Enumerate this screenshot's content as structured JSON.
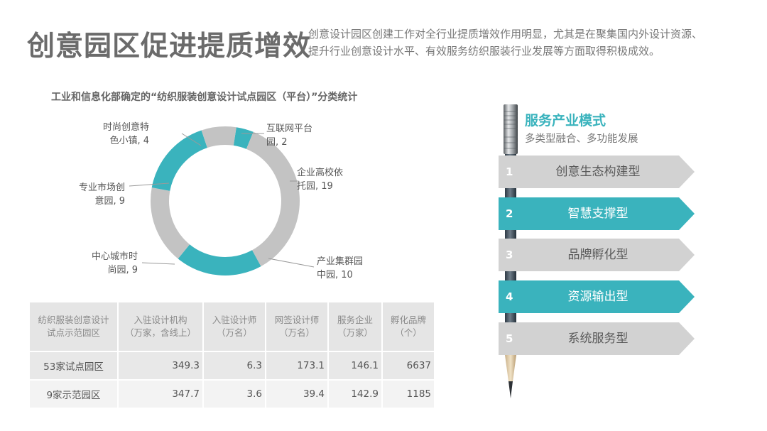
{
  "header": {
    "title": "创意园区促进提质增效",
    "intro_line1": "创意设计园区创建工作对全行业提质增效作用明显，尤其是在聚集国内外设计资源、",
    "intro_line2": "提升行业创意设计水平、有效服务纺织服装行业发展等方面取得积极成效。"
  },
  "chart_data": {
    "type": "pie",
    "title": "工业和信息化部确定的“纺织服装创意设计试点园区（平台）”分类统计",
    "donut": true,
    "slices": [
      {
        "name": "互联网平台园",
        "value": 2,
        "label_lines": [
          "互联网平台",
          "园, 2"
        ],
        "color": "#3ab3bd"
      },
      {
        "name": "企业高校依托园",
        "value": 19,
        "label_lines": [
          "企业高校依",
          "托园, 19"
        ],
        "color": "#c3c3c3"
      },
      {
        "name": "产业集群园中园",
        "value": 10,
        "label_lines": [
          "产业集群园",
          "中园, 10"
        ],
        "color": "#3ab3bd"
      },
      {
        "name": "中心城市时尚园",
        "value": 9,
        "label_lines": [
          "中心城市时",
          "尚园, 9"
        ],
        "color": "#c3c3c3"
      },
      {
        "name": "专业市场创意园",
        "value": 9,
        "label_lines": [
          "专业市场创",
          "意园, 9"
        ],
        "color": "#3ab3bd"
      },
      {
        "name": "时尚创意特色小镇",
        "value": 4,
        "label_lines": [
          "时尚创意特",
          "色小镇, 4"
        ],
        "color": "#c3c3c3"
      }
    ]
  },
  "table": {
    "headers": [
      [
        "纺织服装创意设计",
        "试点示范园区"
      ],
      [
        "入驻设计机构",
        "（万家，含线上）"
      ],
      [
        "入驻设计师",
        "（万名）"
      ],
      [
        "网签设计师",
        "（万名）"
      ],
      [
        "服务企业",
        "（万家）"
      ],
      [
        "孵化品牌",
        "（个）"
      ]
    ],
    "rows": [
      [
        "53家试点园区",
        "349.3",
        "6.3",
        "173.1",
        "146.1",
        "6637"
      ],
      [
        "9家示范园区",
        "347.7",
        "3.6",
        "39.4",
        "142.9",
        "1185"
      ]
    ]
  },
  "service_model": {
    "title": "服务产业模式",
    "subtitle": "多类型融合、多功能发展",
    "accent": "#3ab3bd",
    "gray": "#d2d2d2",
    "steps": [
      {
        "num": "1",
        "label": "创意生态构建型",
        "style": "gray"
      },
      {
        "num": "2",
        "label": "智慧支撑型",
        "style": "teal"
      },
      {
        "num": "3",
        "label": "品牌孵化型",
        "style": "gray"
      },
      {
        "num": "4",
        "label": "资源输出型",
        "style": "teal"
      },
      {
        "num": "5",
        "label": "系统服务型",
        "style": "gray"
      }
    ]
  }
}
